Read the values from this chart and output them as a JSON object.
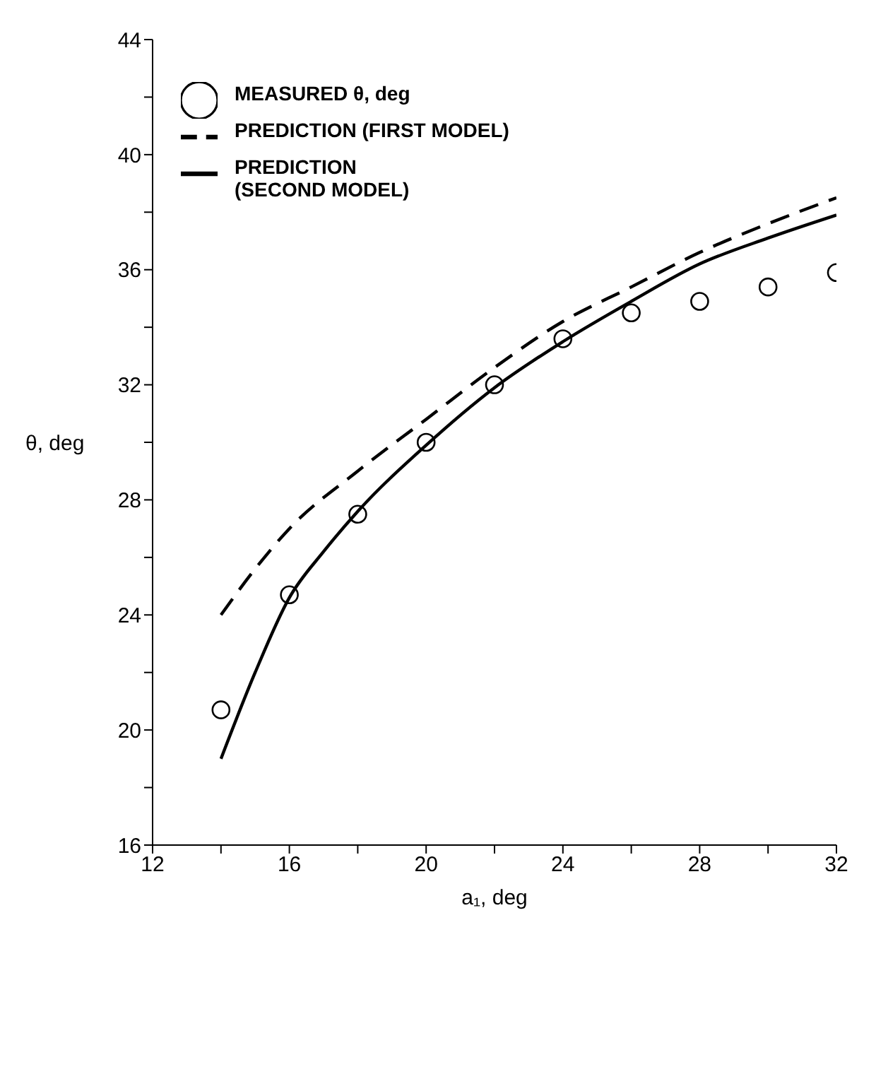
{
  "chart_data": {
    "type": "line",
    "xlabel": "a₁, deg",
    "ylabel": "θ, deg",
    "xlim": [
      12,
      32
    ],
    "xticks": [
      12,
      {
        "value": 14,
        "label": null
      },
      16,
      {
        "value": 18,
        "label": null
      },
      20,
      {
        "value": 22,
        "label": null
      },
      24,
      {
        "value": 26,
        "label": null
      },
      28,
      {
        "value": 30,
        "label": null
      },
      32
    ],
    "ylim": [
      16,
      44
    ],
    "yticks": [
      16,
      {
        "value": 18,
        "label": null
      },
      20,
      {
        "value": 22,
        "label": null
      },
      24,
      {
        "value": 26,
        "label": null
      },
      28,
      {
        "value": 30,
        "label": null
      },
      32,
      {
        "value": 34,
        "label": null
      },
      36,
      {
        "value": 38,
        "label": null
      },
      40,
      {
        "value": 42,
        "label": null
      },
      44
    ],
    "grid": false,
    "legend": "top left",
    "series": [
      {
        "name": "MEASURED θ, deg",
        "type": "scatter",
        "marker": "circle",
        "color": "#000000",
        "x": [
          14,
          16,
          18,
          20,
          22,
          24,
          26,
          28,
          30,
          32
        ],
        "values": [
          20.7,
          24.7,
          27.5,
          30.0,
          32.0,
          33.6,
          34.5,
          34.9,
          35.4,
          35.9
        ]
      },
      {
        "name": "PREDICTION (FIRST MODEL)",
        "line_style": "dashed",
        "color": "#000000",
        "x": [
          14,
          15,
          16,
          18,
          20,
          22,
          24,
          26,
          28,
          30,
          32
        ],
        "values": [
          24.0,
          25.6,
          27.0,
          29.0,
          30.8,
          32.6,
          34.2,
          35.4,
          36.6,
          37.6,
          38.5
        ]
      },
      {
        "name": "PREDICTION\n(SECOND MODEL)",
        "line_style": "solid",
        "color": "#000000",
        "x": [
          14,
          15,
          16,
          17,
          18,
          20,
          22,
          24,
          26,
          28,
          30,
          32
        ],
        "values": [
          19.0,
          22.0,
          24.6,
          26.2,
          27.6,
          29.9,
          31.9,
          33.5,
          34.9,
          36.2,
          37.1,
          37.9
        ]
      }
    ]
  }
}
